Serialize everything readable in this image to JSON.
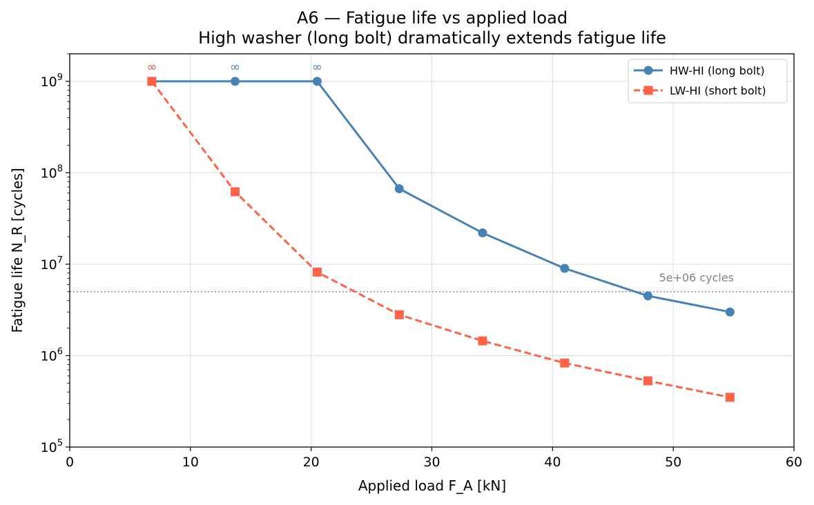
{
  "chart_data": {
    "type": "line",
    "title": "A6 — Fatigue life vs applied load",
    "subtitle": "High washer (long bolt) dramatically extends fatigue life",
    "xlabel": "Applied load F_A [kN]",
    "ylabel": "Fatigue life N_R [cycles]",
    "xlim": [
      0,
      60
    ],
    "ylim": [
      100000,
      2000000000
    ],
    "yscale": "log",
    "grid": true,
    "legend_position": "top-right",
    "x_ticks": [
      0,
      10,
      20,
      30,
      40,
      50,
      60
    ],
    "y_ticks": [
      {
        "value": 100000,
        "base": "10",
        "exp": "5"
      },
      {
        "value": 1000000,
        "base": "10",
        "exp": "6"
      },
      {
        "value": 10000000,
        "base": "10",
        "exp": "7"
      },
      {
        "value": 100000000,
        "base": "10",
        "exp": "8"
      },
      {
        "value": 1000000000,
        "base": "10",
        "exp": "9"
      }
    ],
    "series": [
      {
        "name": "HW-HI (long bolt)",
        "color": "#4682b4",
        "line_style": "solid",
        "marker": "circle",
        "x": [
          6.8,
          13.7,
          20.5,
          27.3,
          34.2,
          41.0,
          47.9,
          54.7
        ],
        "y": [
          1000000000,
          1000000000,
          1000000000,
          67000000,
          22000000,
          9000000,
          4500000,
          3000000
        ],
        "infinite_marks": [
          6.8,
          13.7,
          20.5
        ]
      },
      {
        "name": "LW-HI (short bolt)",
        "color": "#ff6347",
        "line_style": "dashed",
        "marker": "square",
        "x": [
          6.8,
          13.7,
          20.5,
          27.3,
          34.2,
          41.0,
          47.9,
          54.7
        ],
        "y": [
          1000000000,
          62000000,
          8200000,
          2800000,
          1450000,
          830000,
          530000,
          350000
        ],
        "infinite_marks": [
          6.8
        ]
      }
    ],
    "infinite_symbol": "∞",
    "reference_line": {
      "value": 5000000,
      "label": "5e+06 cycles",
      "color": "#808080"
    }
  }
}
